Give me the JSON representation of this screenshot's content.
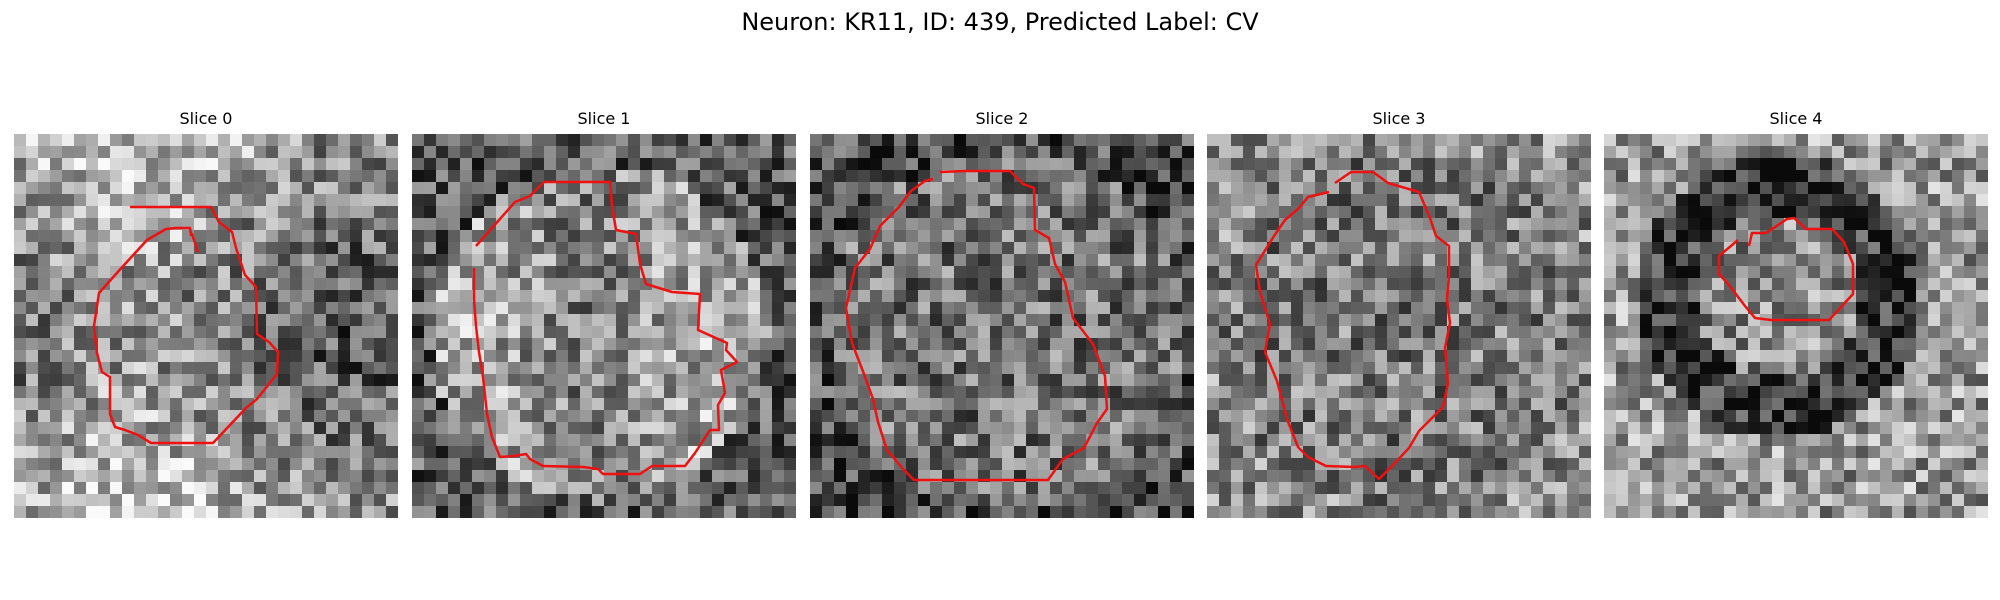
{
  "figure": {
    "title": "Neuron: KR11, ID: 439, Predicted Label: CV"
  },
  "colors": {
    "contour": "#ee1111",
    "background": "#ffffff"
  },
  "panels": [
    {
      "title": "Slice 0",
      "image": "grayscale-microscopy-patch",
      "overlay": "red-contour"
    },
    {
      "title": "Slice 1",
      "image": "grayscale-microscopy-patch",
      "overlay": "red-contour"
    },
    {
      "title": "Slice 2",
      "image": "grayscale-microscopy-patch",
      "overlay": "red-contour"
    },
    {
      "title": "Slice 3",
      "image": "grayscale-microscopy-patch",
      "overlay": "red-contour"
    },
    {
      "title": "Slice 4",
      "image": "grayscale-microscopy-patch",
      "overlay": "red-contour"
    }
  ]
}
